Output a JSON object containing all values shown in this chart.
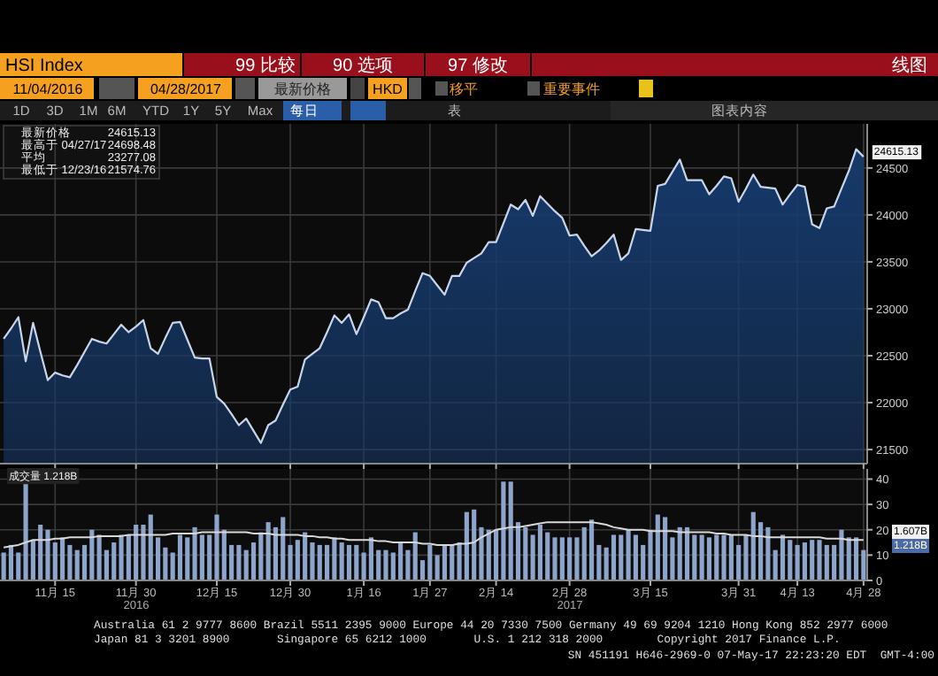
{
  "chart_data": [
    {
      "type": "area",
      "color": "#163a6c",
      "ylim": [
        21350,
        24970
      ],
      "yticks": [
        21500,
        22000,
        22500,
        23000,
        23500,
        24000,
        24500
      ],
      "categories": [
        null,
        null,
        null,
        null,
        null,
        null,
        null,
        "11月 15",
        null,
        null,
        null,
        null,
        null,
        null,
        null,
        null,
        null,
        null,
        "11月 30",
        null,
        null,
        null,
        null,
        null,
        null,
        null,
        null,
        null,
        null,
        "12月 15",
        null,
        null,
        null,
        null,
        null,
        null,
        null,
        null,
        null,
        "12月 30",
        null,
        null,
        null,
        null,
        null,
        null,
        null,
        null,
        null,
        "1月 16",
        null,
        null,
        null,
        null,
        null,
        null,
        null,
        null,
        "1月 27",
        null,
        null,
        null,
        null,
        null,
        null,
        null,
        null,
        "2月 14",
        null,
        null,
        null,
        null,
        null,
        null,
        null,
        null,
        null,
        "2月 28",
        null,
        null,
        null,
        null,
        null,
        null,
        null,
        null,
        null,
        null,
        "3月 15",
        null,
        null,
        null,
        null,
        null,
        null,
        null,
        null,
        null,
        null,
        null,
        "3月 31",
        null,
        null,
        null,
        null,
        null,
        null,
        null,
        "4月 13",
        null,
        null,
        null,
        null,
        null,
        null,
        null,
        null,
        "4月 28"
      ],
      "tick_labels": "y",
      "grid": true,
      "values": [
        22680,
        22790,
        22910,
        22440,
        22850,
        22540,
        22240,
        22320,
        22290,
        22270,
        22400,
        22540,
        22680,
        22650,
        22630,
        22730,
        22830,
        22750,
        22810,
        22880,
        22580,
        22520,
        22690,
        22850,
        22860,
        22670,
        22480,
        22470,
        22470,
        22060,
        21990,
        21880,
        21760,
        21830,
        21700,
        21570,
        21760,
        21810,
        21980,
        22140,
        22170,
        22460,
        22520,
        22580,
        22750,
        22930,
        22850,
        22940,
        22730,
        22910,
        23100,
        23070,
        22900,
        22900,
        22950,
        22990,
        23190,
        23380,
        23350,
        23250,
        23150,
        23350,
        23350,
        23490,
        23540,
        23590,
        23710,
        23710,
        23910,
        24110,
        24060,
        24160,
        23990,
        24200,
        24120,
        24040,
        23970,
        23780,
        23790,
        23670,
        23560,
        23620,
        23700,
        23790,
        23520,
        23590,
        23850,
        23840,
        23830,
        24310,
        24330,
        24460,
        24590,
        24370,
        24370,
        24370,
        24220,
        24310,
        24410,
        24390,
        24140,
        24280,
        24430,
        24300,
        24290,
        24280,
        24110,
        24220,
        24320,
        24300,
        23900,
        23860,
        24070,
        24090,
        24280,
        24470,
        24700,
        24620
      ],
      "annotations": [
        "HSI Index",
        "99 比较",
        "90 选项",
        "97 修改",
        "线图",
        "11/04/2016",
        "04/28/2017",
        "最新价格",
        "HKD",
        "移平",
        "重要事件",
        "1D",
        "3D",
        "1M",
        "6M",
        "YTD",
        "1Y",
        "5Y",
        "Max",
        "每日",
        "表",
        "图表内容",
        "最新价格",
        "24615.13",
        "最高于 04/27/17",
        "24698.48",
        "平均",
        "23277.08",
        "最低于 12/23/16",
        "21574.76",
        {
          "text": "24615.13",
          "x": "4月 28",
          "y": 24620
        }
      ]
    },
    {
      "type": "bar",
      "ylim": [
        0,
        44
      ],
      "yticks": [
        0,
        10,
        20,
        30,
        40
      ],
      "grid": true,
      "categories": [
        null,
        null,
        null,
        null,
        null,
        null,
        null,
        "11月 15",
        null,
        null,
        null,
        null,
        null,
        null,
        null,
        null,
        null,
        null,
        "11月 30",
        null,
        null,
        null,
        null,
        null,
        null,
        null,
        null,
        null,
        null,
        "12月 15",
        null,
        null,
        null,
        null,
        null,
        null,
        null,
        null,
        null,
        "12月 30",
        null,
        null,
        null,
        null,
        null,
        null,
        null,
        null,
        null,
        "1月 16",
        null,
        null,
        null,
        null,
        null,
        null,
        null,
        null,
        "1月 27",
        null,
        null,
        null,
        null,
        null,
        null,
        null,
        null,
        "2月 14",
        null,
        null,
        null,
        null,
        null,
        null,
        null,
        null,
        null,
        "2月 28",
        null,
        null,
        null,
        null,
        null,
        null,
        null,
        null,
        null,
        null,
        "3月 15",
        null,
        null,
        null,
        null,
        null,
        null,
        null,
        null,
        null,
        null,
        null,
        "3月 31",
        null,
        null,
        null,
        null,
        null,
        null,
        null,
        "4月 13",
        null,
        null,
        null,
        null,
        null,
        null,
        null,
        null,
        "4月 28"
      ],
      "series": [
        {
          "color": "#8ea4ca",
          "values": [
            11,
            14,
            11,
            38,
            16,
            22,
            20,
            15,
            17,
            14,
            12,
            14,
            20,
            18,
            12,
            15,
            18,
            18,
            22,
            22,
            26,
            17,
            13,
            11,
            18,
            17,
            21,
            18,
            18,
            26,
            20,
            14,
            14,
            12,
            15,
            19,
            23,
            21,
            25,
            14,
            16,
            19,
            15,
            14,
            14,
            17,
            15,
            14,
            14,
            11,
            17,
            12,
            12,
            11,
            15,
            12,
            19,
            8,
            14,
            10,
            14,
            14,
            15,
            27,
            28,
            21,
            20,
            20,
            39,
            39,
            23,
            21,
            18,
            22,
            19,
            17,
            17,
            17,
            17,
            21,
            24,
            14,
            13,
            18,
            18,
            20,
            18,
            14,
            20,
            26,
            25,
            17,
            21,
            21,
            18,
            18,
            17,
            18,
            18,
            18,
            14,
            18,
            27,
            23,
            21,
            12,
            18,
            16,
            14,
            15,
            16,
            16,
            14,
            14,
            20,
            17,
            17,
            12
          ]
        },
        {
          "type": "line",
          "color": "#d8d8d8",
          "values": [
            13,
            13.5,
            14,
            15,
            16,
            16,
            16,
            16.5,
            16.5,
            17,
            17,
            17,
            17,
            17.5,
            17.5,
            17.5,
            17.5,
            18,
            18,
            18,
            18,
            18,
            18,
            18.5,
            18.5,
            18.5,
            18.5,
            19,
            19,
            19,
            19,
            19,
            19,
            19,
            18.5,
            18.5,
            18.5,
            18,
            18,
            18,
            18,
            17.5,
            17.5,
            17,
            17,
            16.5,
            16.5,
            16,
            16,
            16,
            16,
            15.5,
            15.5,
            15,
            15,
            15,
            15,
            14.5,
            14.5,
            14,
            14,
            14,
            14.5,
            14.5,
            15,
            17,
            18.5,
            20,
            20.5,
            21,
            21,
            21.5,
            22,
            22.5,
            23,
            23,
            23,
            23,
            23,
            23,
            23,
            22.5,
            22,
            21,
            20.5,
            20,
            20,
            20,
            19.5,
            19.5,
            19.5,
            19.5,
            19,
            19,
            19,
            19,
            19,
            18.5,
            18.5,
            18,
            18,
            18,
            17.5,
            17.5,
            17,
            17,
            17,
            17,
            17,
            17,
            17,
            17,
            16.5,
            16.5,
            16.5,
            16,
            16,
            16
          ]
        }
      ],
      "annotations": [
        "成交量 1.218B",
        "1.607B",
        "1.218B",
        "2016",
        "2017",
        "Australia 61 2 9777 8600 Brazil 5511 2395 9000 Europe 44 20 7330 7500 Germany 49 69 9204 1210 Hong Kong 852 2977 6000",
        "Japan 81 3 3201 8900       Singapore 65 6212 1000       U.S. 1 212 318 2000        Copyright 2017 Finance L.P.",
        "SN 451191 H646-2969-0 07-May-17 22:23:20 EDT  GMT-4:00"
      ]
    }
  ]
}
